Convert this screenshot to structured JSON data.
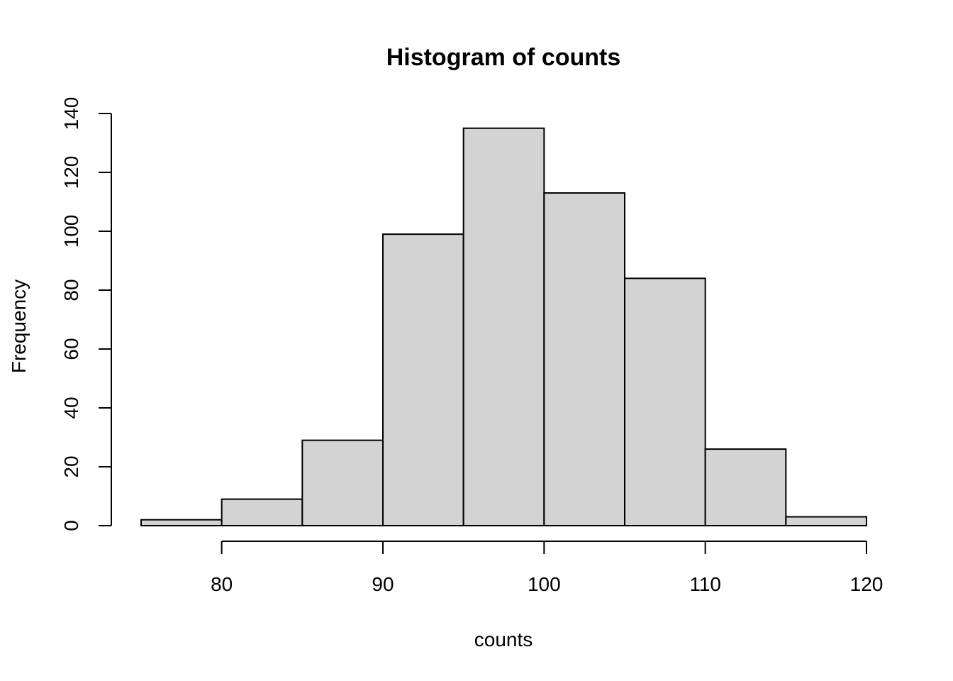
{
  "chart_data": {
    "type": "bar",
    "title": "Histogram of counts",
    "xlabel": "counts",
    "ylabel": "Frequency",
    "bins": [
      {
        "start": 75,
        "end": 80,
        "count": 2
      },
      {
        "start": 80,
        "end": 85,
        "count": 9
      },
      {
        "start": 85,
        "end": 90,
        "count": 29
      },
      {
        "start": 90,
        "end": 95,
        "count": 99
      },
      {
        "start": 95,
        "end": 100,
        "count": 135
      },
      {
        "start": 100,
        "end": 105,
        "count": 113
      },
      {
        "start": 105,
        "end": 110,
        "count": 84
      },
      {
        "start": 110,
        "end": 115,
        "count": 26
      },
      {
        "start": 115,
        "end": 120,
        "count": 3
      }
    ],
    "x_ticks": [
      80,
      90,
      100,
      110,
      120
    ],
    "y_ticks": [
      0,
      20,
      40,
      60,
      80,
      100,
      120,
      140
    ],
    "xlim": [
      75,
      120
    ],
    "ylim": [
      0,
      140
    ],
    "grid": false,
    "bar_fill": "#d3d3d3",
    "bar_stroke": "#000000"
  }
}
